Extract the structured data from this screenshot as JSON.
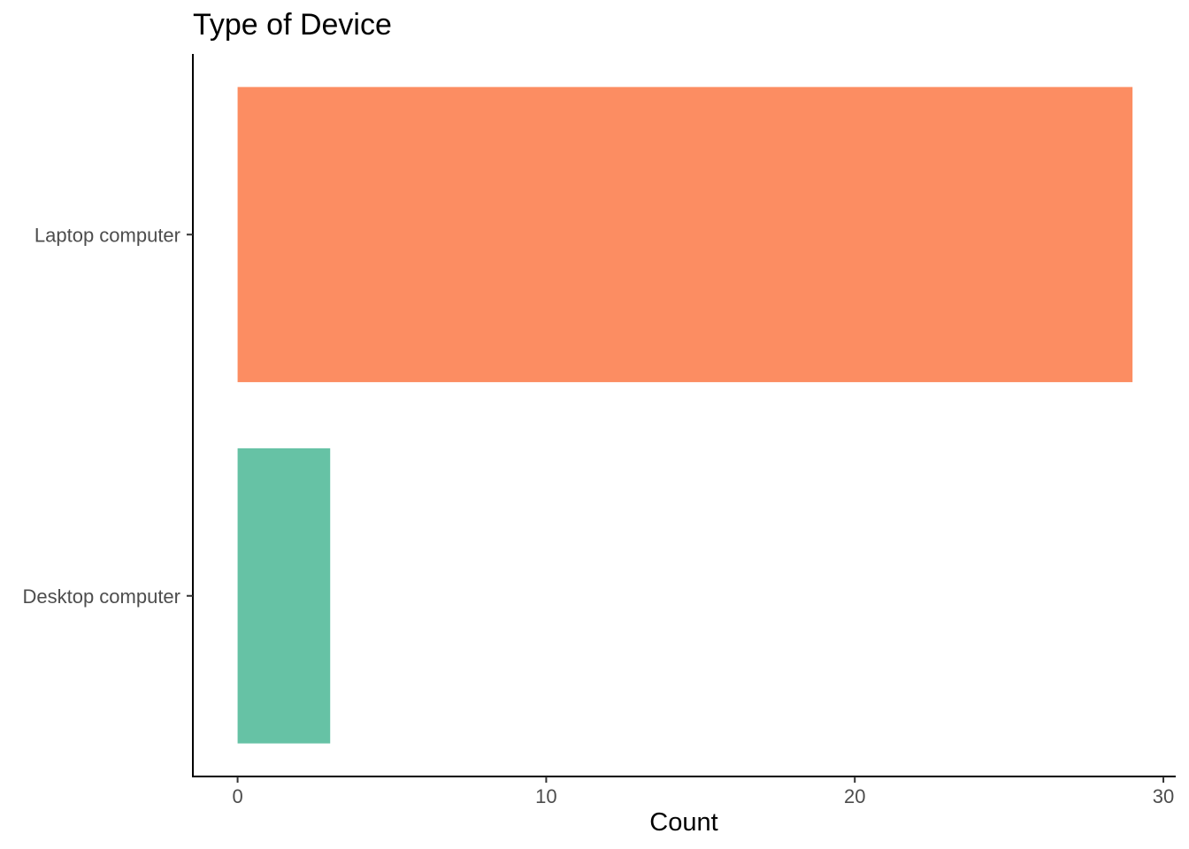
{
  "chart_data": {
    "type": "bar",
    "orientation": "horizontal",
    "title": "Type of Device",
    "xlabel": "Count",
    "ylabel": "",
    "categories": [
      "Desktop computer",
      "Laptop computer"
    ],
    "values": [
      3,
      29
    ],
    "colors": [
      "#66c2a5",
      "#fc8d62"
    ],
    "xlim": [
      -1.45,
      30.4
    ],
    "x_ticks": [
      0,
      10,
      20,
      30
    ],
    "grid": false,
    "legend": "none"
  }
}
